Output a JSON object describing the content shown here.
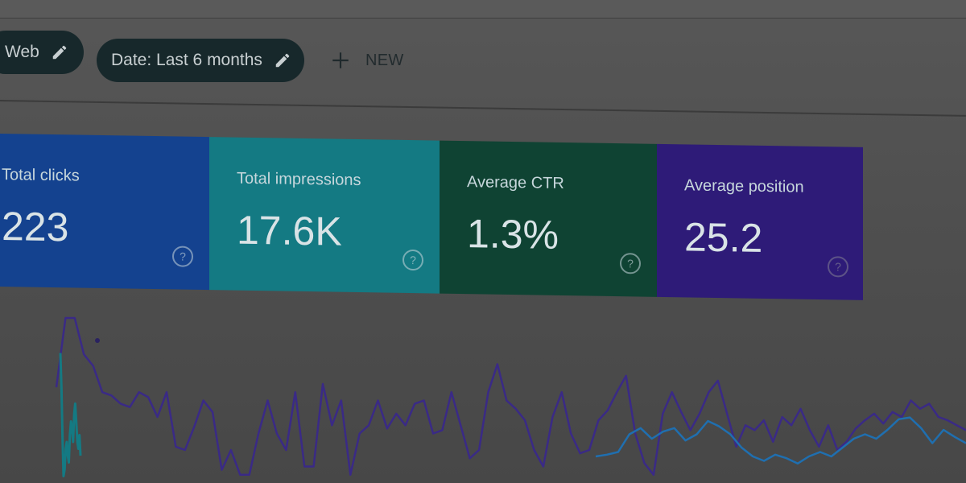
{
  "filters": {
    "chips": [
      {
        "label": "Web",
        "edit_icon": "pencil-icon"
      },
      {
        "label": "Date: Last 6 months",
        "edit_icon": "pencil-icon"
      }
    ],
    "new_label": "NEW",
    "new_icon": "plus-icon"
  },
  "metrics": [
    {
      "title": "Total clicks",
      "value": "223",
      "color": "#14428f"
    },
    {
      "title": "Total impressions",
      "value": "17.6K",
      "color": "#147a83"
    },
    {
      "title": "Average CTR",
      "value": "1.3%",
      "color": "#0f4333"
    },
    {
      "title": "Average position",
      "value": "25.2",
      "color": "#2e1b78"
    }
  ],
  "chart_data": {
    "type": "line",
    "grid": false,
    "legend": "none",
    "series": [
      {
        "color": "#3a2a86",
        "values": [
          0.58,
          1.0,
          1.0,
          0.78,
          0.71,
          0.55,
          0.53,
          0.48,
          0.46,
          0.55,
          0.52,
          0.4,
          0.55,
          0.22,
          0.2,
          0.34,
          0.5,
          0.43,
          0.08,
          0.2,
          0.05,
          0.05,
          0.3,
          0.5,
          0.3,
          0.2,
          0.55,
          0.1,
          0.1,
          0.6,
          0.35,
          0.5,
          0.05,
          0.3,
          0.35,
          0.5,
          0.33,
          0.42,
          0.35,
          0.48,
          0.5,
          0.3,
          0.32,
          0.55,
          0.35,
          0.15,
          0.2,
          0.55,
          0.72,
          0.5,
          0.45,
          0.38,
          0.2,
          0.1,
          0.4,
          0.55,
          0.3,
          0.18,
          0.2,
          0.38,
          0.44,
          0.55,
          0.65,
          0.3,
          0.12,
          0.05,
          0.42,
          0.55,
          0.43,
          0.32,
          0.42,
          0.55,
          0.62,
          0.42,
          0.22,
          0.35,
          0.32,
          0.38,
          0.25,
          0.4,
          0.35,
          0.45,
          0.32,
          0.22,
          0.35,
          0.2,
          0.25,
          0.33,
          0.38,
          0.42,
          0.36,
          0.43,
          0.4,
          0.5,
          0.45,
          0.48,
          0.4,
          0.38,
          0.35,
          0.32
        ]
      },
      {
        "color": "#1f6fb0",
        "values": [
          0.3,
          0.32,
          0.35,
          0.55,
          0.62,
          0.5,
          0.58,
          0.62,
          0.48,
          0.55,
          0.7,
          0.64,
          0.55,
          0.4,
          0.3,
          0.25,
          0.32,
          0.28,
          0.22,
          0.3,
          0.35,
          0.3,
          0.4,
          0.5,
          0.55,
          0.5,
          0.6,
          0.72,
          0.74,
          0.62,
          0.45,
          0.6,
          0.52,
          0.45
        ]
      },
      {
        "color": "#147a83",
        "values": [
          0.95,
          0.7,
          0.35,
          0.05,
          0.1,
          0.25,
          0.3,
          0.2,
          0.15,
          0.35,
          0.45,
          0.4,
          0.3,
          0.5,
          0.58,
          0.45,
          0.3,
          0.25,
          0.35,
          0.2
        ]
      }
    ]
  }
}
